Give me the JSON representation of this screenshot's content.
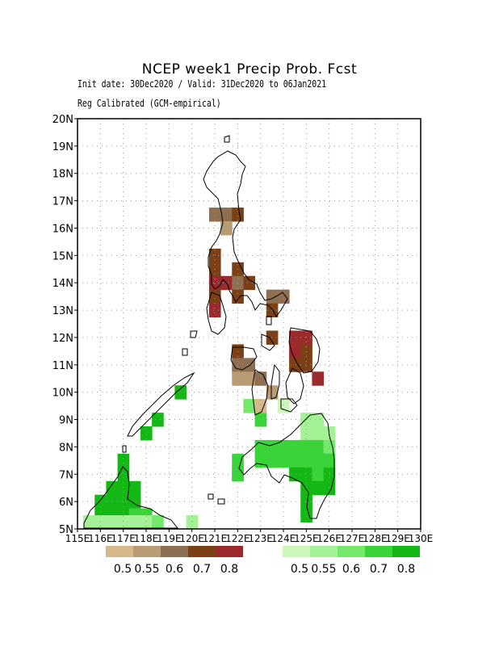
{
  "header": {
    "title": "NCEP week1 Precip Prob. Fcst",
    "line1": "Init date: 30Dec2020 / Valid: 31Dec2020 to 06Jan2021",
    "line2": "Reg Calibrated (GCM-empirical)"
  },
  "axes": {
    "lon_ticks": [
      "115E",
      "116E",
      "117E",
      "118E",
      "119E",
      "120E",
      "121E",
      "122E",
      "123E",
      "124E",
      "125E",
      "126E",
      "127E",
      "128E",
      "129E",
      "130E"
    ],
    "lat_ticks": [
      "5N",
      "6N",
      "7N",
      "8N",
      "9N",
      "10N",
      "11N",
      "12N",
      "13N",
      "14N",
      "15N",
      "16N",
      "17N",
      "18N",
      "19N",
      "20N"
    ],
    "lon_range": [
      115,
      130
    ],
    "lat_range": [
      5,
      20
    ],
    "grid": true
  },
  "legend": {
    "dry": {
      "labels": [
        "0.5",
        "0.55",
        "0.6",
        "0.7",
        "0.8"
      ],
      "colors": [
        "#d8b88a",
        "#b99b74",
        "#8f6f52",
        "#7b4016",
        "#9c2a2d"
      ]
    },
    "wet": {
      "labels": [
        "0.5",
        "0.55",
        "0.6",
        "0.7",
        "0.8"
      ],
      "colors": [
        "#cdf7b8",
        "#a5f197",
        "#74e86a",
        "#3ad43a",
        "#14b814"
      ]
    }
  },
  "chart_data": {
    "type": "heatmap",
    "cell_size_deg": 0.5,
    "note_units": "lon/lat of cell south-west corner; level 0-4 maps to legend color",
    "dry_cells": [
      {
        "lon": 120.75,
        "lat": 16.25,
        "level": 2
      },
      {
        "lon": 121.25,
        "lat": 16.25,
        "level": 2
      },
      {
        "lon": 121.75,
        "lat": 16.25,
        "level": 3
      },
      {
        "lon": 121.25,
        "lat": 15.75,
        "level": 1
      },
      {
        "lon": 120.75,
        "lat": 14.75,
        "level": 3
      },
      {
        "lon": 120.75,
        "lat": 14.25,
        "level": 3
      },
      {
        "lon": 121.75,
        "lat": 14.25,
        "level": 3
      },
      {
        "lon": 120.75,
        "lat": 13.75,
        "level": 4
      },
      {
        "lon": 121.25,
        "lat": 13.75,
        "level": 4
      },
      {
        "lon": 121.75,
        "lat": 13.75,
        "level": 2
      },
      {
        "lon": 122.25,
        "lat": 13.75,
        "level": 3
      },
      {
        "lon": 120.75,
        "lat": 13.25,
        "level": 3
      },
      {
        "lon": 121.75,
        "lat": 13.25,
        "level": 3
      },
      {
        "lon": 120.75,
        "lat": 12.75,
        "level": 4
      },
      {
        "lon": 123.25,
        "lat": 13.25,
        "level": 2
      },
      {
        "lon": 123.75,
        "lat": 13.25,
        "level": 2
      },
      {
        "lon": 123.25,
        "lat": 12.75,
        "level": 3
      },
      {
        "lon": 123.25,
        "lat": 11.75,
        "level": 3
      },
      {
        "lon": 124.25,
        "lat": 11.75,
        "level": 4
      },
      {
        "lon": 124.75,
        "lat": 11.75,
        "level": 4
      },
      {
        "lon": 124.25,
        "lat": 11.25,
        "level": 4
      },
      {
        "lon": 124.75,
        "lat": 11.25,
        "level": 3
      },
      {
        "lon": 121.75,
        "lat": 11.25,
        "level": 3
      },
      {
        "lon": 121.75,
        "lat": 10.75,
        "level": 2
      },
      {
        "lon": 122.25,
        "lat": 10.75,
        "level": 2
      },
      {
        "lon": 124.25,
        "lat": 10.75,
        "level": 3
      },
      {
        "lon": 124.75,
        "lat": 10.75,
        "level": 3
      },
      {
        "lon": 121.75,
        "lat": 10.25,
        "level": 1
      },
      {
        "lon": 122.25,
        "lat": 10.25,
        "level": 1
      },
      {
        "lon": 122.75,
        "lat": 10.25,
        "level": 2
      },
      {
        "lon": 125.25,
        "lat": 10.25,
        "level": 4
      },
      {
        "lon": 123.25,
        "lat": 9.75,
        "level": 1
      },
      {
        "lon": 122.75,
        "lat": 9.25,
        "level": 0
      }
    ],
    "wet_cells": [
      {
        "lon": 119.25,
        "lat": 9.75,
        "level": 4
      },
      {
        "lon": 118.25,
        "lat": 8.75,
        "level": 4
      },
      {
        "lon": 117.75,
        "lat": 8.25,
        "level": 4
      },
      {
        "lon": 122.25,
        "lat": 9.25,
        "level": 2
      },
      {
        "lon": 122.75,
        "lat": 8.75,
        "level": 3
      },
      {
        "lon": 123.75,
        "lat": 9.25,
        "level": 0
      },
      {
        "lon": 124.75,
        "lat": 8.75,
        "level": 1
      },
      {
        "lon": 125.25,
        "lat": 8.75,
        "level": 1
      },
      {
        "lon": 124.75,
        "lat": 8.25,
        "level": 1
      },
      {
        "lon": 125.25,
        "lat": 8.25,
        "level": 1
      },
      {
        "lon": 125.75,
        "lat": 8.25,
        "level": 1
      },
      {
        "lon": 122.75,
        "lat": 7.75,
        "level": 3
      },
      {
        "lon": 123.25,
        "lat": 7.75,
        "level": 3
      },
      {
        "lon": 123.75,
        "lat": 7.75,
        "level": 3
      },
      {
        "lon": 124.25,
        "lat": 7.75,
        "level": 3
      },
      {
        "lon": 124.75,
        "lat": 7.75,
        "level": 3
      },
      {
        "lon": 125.25,
        "lat": 7.75,
        "level": 3
      },
      {
        "lon": 125.75,
        "lat": 7.75,
        "level": 2
      },
      {
        "lon": 122.75,
        "lat": 7.25,
        "level": 3
      },
      {
        "lon": 123.25,
        "lat": 7.25,
        "level": 3
      },
      {
        "lon": 123.75,
        "lat": 7.25,
        "level": 3
      },
      {
        "lon": 124.25,
        "lat": 7.25,
        "level": 3
      },
      {
        "lon": 124.75,
        "lat": 7.25,
        "level": 3
      },
      {
        "lon": 125.25,
        "lat": 7.25,
        "level": 3
      },
      {
        "lon": 125.75,
        "lat": 7.25,
        "level": 3
      },
      {
        "lon": 121.75,
        "lat": 7.25,
        "level": 3
      },
      {
        "lon": 121.75,
        "lat": 6.75,
        "level": 3
      },
      {
        "lon": 121.75,
        "lat": 6.75,
        "level": 3
      },
      {
        "lon": 124.25,
        "lat": 6.75,
        "level": 4
      },
      {
        "lon": 124.75,
        "lat": 6.75,
        "level": 4
      },
      {
        "lon": 125.25,
        "lat": 6.75,
        "level": 3
      },
      {
        "lon": 125.75,
        "lat": 6.75,
        "level": 4
      },
      {
        "lon": 124.75,
        "lat": 6.25,
        "level": 4
      },
      {
        "lon": 125.25,
        "lat": 6.25,
        "level": 4
      },
      {
        "lon": 125.75,
        "lat": 6.25,
        "level": 4
      },
      {
        "lon": 124.75,
        "lat": 5.75,
        "level": 4
      },
      {
        "lon": 124.75,
        "lat": 5.25,
        "level": 4
      },
      {
        "lon": 116.75,
        "lat": 7.25,
        "level": 4
      },
      {
        "lon": 116.75,
        "lat": 6.75,
        "level": 4
      },
      {
        "lon": 116.25,
        "lat": 6.25,
        "level": 4
      },
      {
        "lon": 116.75,
        "lat": 6.25,
        "level": 4
      },
      {
        "lon": 117.25,
        "lat": 6.25,
        "level": 4
      },
      {
        "lon": 115.75,
        "lat": 5.75,
        "level": 4
      },
      {
        "lon": 116.25,
        "lat": 5.75,
        "level": 4
      },
      {
        "lon": 116.75,
        "lat": 5.75,
        "level": 4
      },
      {
        "lon": 117.25,
        "lat": 5.75,
        "level": 4
      },
      {
        "lon": 115.75,
        "lat": 5.25,
        "level": 4
      },
      {
        "lon": 116.25,
        "lat": 5.25,
        "level": 4
      },
      {
        "lon": 116.75,
        "lat": 5.25,
        "level": 4
      },
      {
        "lon": 117.25,
        "lat": 5.25,
        "level": 3
      },
      {
        "lon": 117.75,
        "lat": 5.25,
        "level": 3
      },
      {
        "lon": 115.25,
        "lat": 5.0,
        "level": 1
      },
      {
        "lon": 115.75,
        "lat": 5.0,
        "level": 1
      },
      {
        "lon": 116.25,
        "lat": 5.0,
        "level": 1
      },
      {
        "lon": 116.75,
        "lat": 5.0,
        "level": 1
      },
      {
        "lon": 117.25,
        "lat": 5.0,
        "level": 1
      },
      {
        "lon": 117.75,
        "lat": 5.0,
        "level": 1
      },
      {
        "lon": 118.25,
        "lat": 5.0,
        "level": 2
      },
      {
        "lon": 119.75,
        "lat": 5.0,
        "level": 1
      }
    ]
  }
}
